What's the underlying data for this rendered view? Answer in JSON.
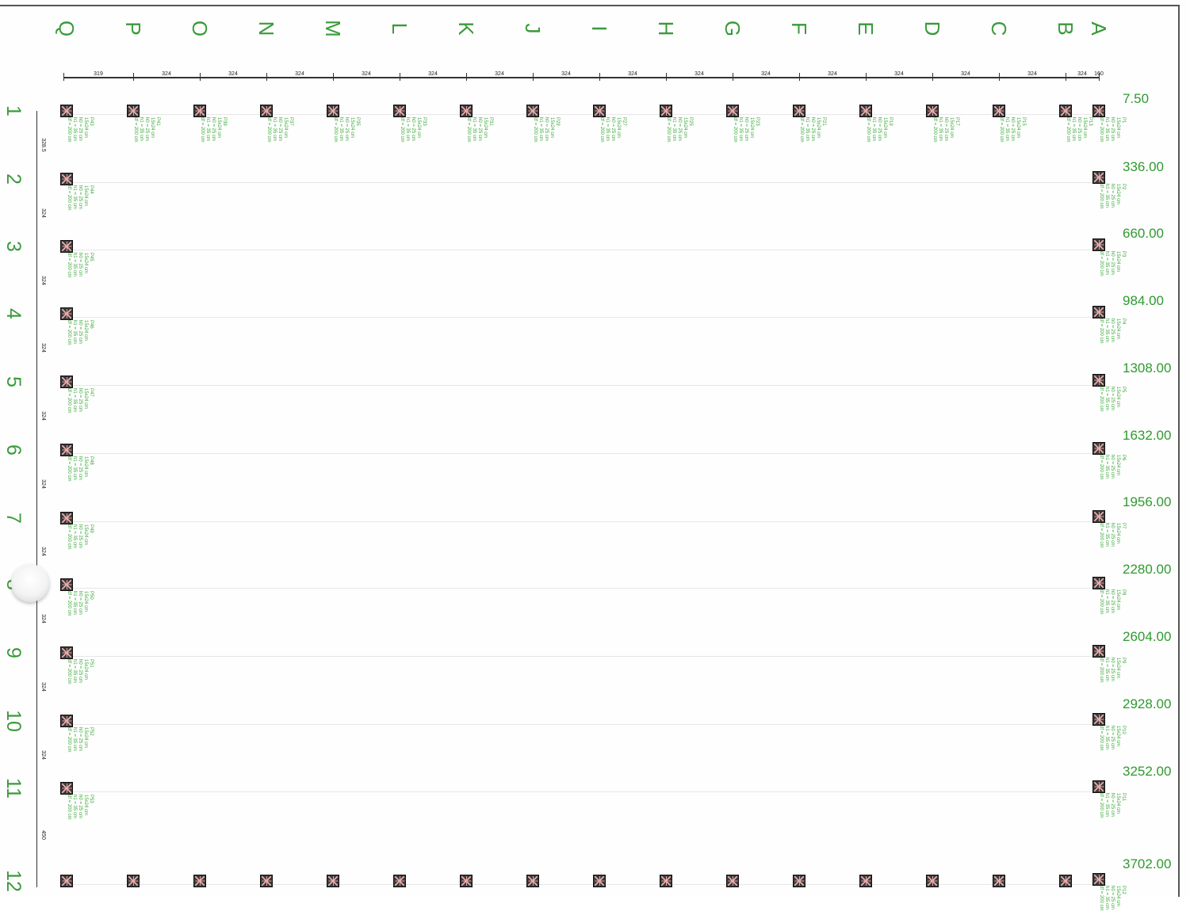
{
  "drawing": {
    "column_labels": [
      "Q",
      "P",
      "O",
      "N",
      "M",
      "L",
      "K",
      "J",
      "I",
      "H",
      "G",
      "F",
      "E",
      "D",
      "C",
      "B",
      "A"
    ],
    "column_spacings": [
      "319",
      "324",
      "324",
      "324",
      "324",
      "324",
      "324",
      "324",
      "324",
      "324",
      "324",
      "324",
      "324",
      "324",
      "324",
      "324",
      "160"
    ],
    "row_labels": [
      "1",
      "2",
      "3",
      "4",
      "5",
      "6",
      "7",
      "8",
      "9",
      "10",
      "11",
      "12"
    ],
    "row_spacings": [
      "328.5",
      "324",
      "324",
      "324",
      "324",
      "324",
      "324",
      "324",
      "324",
      "324",
      "450"
    ],
    "elevations": [
      "7.50",
      "336.00",
      "660.00",
      "984.00",
      "1308.00",
      "1632.00",
      "1956.00",
      "2280.00",
      "2604.00",
      "2928.00",
      "3252.00",
      "3702.00"
    ],
    "pile_spec": {
      "section": "15x24 cm",
      "h0": "h0 = 25 cm",
      "h1": "h1 = 35 cm",
      "df": "df = 200 cm"
    },
    "top_row_piles": [
      "P43",
      "P41",
      "P39",
      "P37",
      "P35",
      "P33",
      "P31",
      "P29",
      "P27",
      "P25",
      "P23",
      "P21",
      "P19",
      "P17",
      "P15",
      "P13",
      "P1"
    ],
    "left_col_piles": [
      "P44",
      "P45",
      "P46",
      "P47",
      "P48",
      "P49",
      "P50",
      "P51",
      "P52",
      "P53"
    ],
    "right_col_piles": [
      "P2",
      "P3",
      "P4",
      "P5",
      "P6",
      "P7",
      "P8",
      "P9",
      "P10",
      "P11",
      "P12"
    ],
    "colors": {
      "label_green": "#3a9a3a",
      "pile_fill": "#3b3b3b",
      "line": "#333333"
    }
  }
}
